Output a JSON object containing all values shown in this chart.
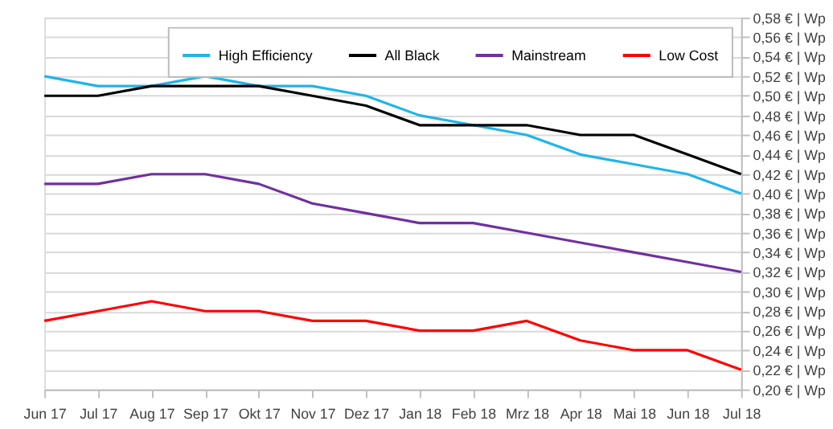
{
  "chart_data": {
    "type": "line",
    "categories": [
      "Jun 17",
      "Jul 17",
      "Aug 17",
      "Sep 17",
      "Okt 17",
      "Nov 17",
      "Dez 17",
      "Jan 18",
      "Feb 18",
      "Mrz 18",
      "Apr 18",
      "Mai 18",
      "Jun 18",
      "Jul 18"
    ],
    "series": [
      {
        "name": "High Efficiency",
        "color": "#1fb4ec",
        "values": [
          0.52,
          0.51,
          0.51,
          0.52,
          0.51,
          0.51,
          0.5,
          0.48,
          0.47,
          0.46,
          0.44,
          0.43,
          0.42,
          0.4
        ]
      },
      {
        "name": "All Black",
        "color": "#000000",
        "values": [
          0.5,
          0.5,
          0.51,
          0.51,
          0.51,
          0.5,
          0.49,
          0.47,
          0.47,
          0.47,
          0.46,
          0.46,
          0.44,
          0.42
        ]
      },
      {
        "name": "Mainstream",
        "color": "#7030a0",
        "values": [
          0.41,
          0.41,
          0.42,
          0.42,
          0.41,
          0.39,
          0.38,
          0.37,
          0.37,
          0.36,
          0.35,
          0.34,
          0.33,
          0.32
        ]
      },
      {
        "name": "Low Cost",
        "color": "#ff0000",
        "values": [
          0.27,
          0.28,
          0.29,
          0.28,
          0.28,
          0.27,
          0.27,
          0.26,
          0.26,
          0.27,
          0.25,
          0.24,
          0.24,
          0.22
        ]
      }
    ],
    "ylim": [
      0.2,
      0.58
    ],
    "yticks": [
      {
        "value": 0.2,
        "label": "0,20 € | Wp"
      },
      {
        "value": 0.22,
        "label": "0,22 € | Wp"
      },
      {
        "value": 0.24,
        "label": "0,24 € | Wp"
      },
      {
        "value": 0.26,
        "label": "0,26 € | Wp"
      },
      {
        "value": 0.28,
        "label": "0,28 € | Wp"
      },
      {
        "value": 0.3,
        "label": "0,30 € | Wp"
      },
      {
        "value": 0.32,
        "label": "0,32 € | Wp"
      },
      {
        "value": 0.34,
        "label": "0,34 € | Wp"
      },
      {
        "value": 0.36,
        "label": "0,36 € | Wp"
      },
      {
        "value": 0.38,
        "label": "0,38 € | Wp"
      },
      {
        "value": 0.4,
        "label": "0,40 € | Wp"
      },
      {
        "value": 0.42,
        "label": "0,42 € | Wp"
      },
      {
        "value": 0.44,
        "label": "0,44 € | Wp"
      },
      {
        "value": 0.46,
        "label": "0,46 € | Wp"
      },
      {
        "value": 0.48,
        "label": "0,48 € | Wp"
      },
      {
        "value": 0.5,
        "label": "0,50 € | Wp"
      },
      {
        "value": 0.52,
        "label": "0,52 € | Wp"
      },
      {
        "value": 0.54,
        "label": "0,54 € | Wp"
      },
      {
        "value": 0.56,
        "label": "0,56 € | Wp"
      },
      {
        "value": 0.58,
        "label": "0,58 € | Wp"
      }
    ],
    "grid": "y",
    "legend": "top right",
    "marker": "none",
    "line_style": "solid"
  }
}
